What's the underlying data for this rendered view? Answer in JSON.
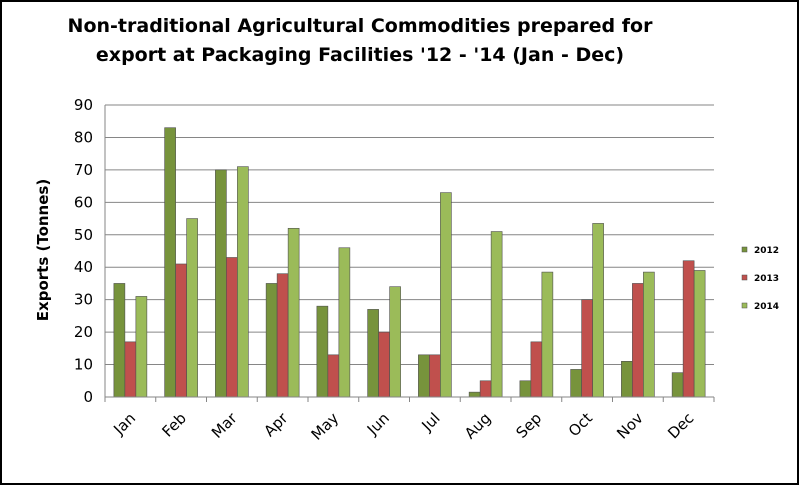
{
  "chart_data": {
    "type": "bar",
    "title_line1": "Non-traditional Agricultural Commodities prepared for",
    "title_line2": "export at Packaging Facilities '12 - '14 (Jan - Dec)",
    "ylabel": "Exports (Tonnes)",
    "xlabel": "",
    "ylim": [
      0,
      90
    ],
    "yticks": [
      0,
      10,
      20,
      30,
      40,
      50,
      60,
      70,
      80,
      90
    ],
    "grid": true,
    "legend_position": "right",
    "categories": [
      "Jan",
      "Feb",
      "Mar",
      "Apr",
      "May",
      "Jun",
      "Jul",
      "Aug",
      "Sep",
      "Oct",
      "Nov",
      "Dec"
    ],
    "series": [
      {
        "name": "2012",
        "color": "#77933c",
        "values": [
          35,
          83,
          70,
          35,
          28,
          27,
          13,
          1.5,
          5,
          8.5,
          11,
          7.5
        ]
      },
      {
        "name": "2013",
        "color": "#c0504d",
        "values": [
          17,
          41,
          43,
          38,
          13,
          20,
          13,
          5,
          17,
          30,
          35,
          42
        ]
      },
      {
        "name": "2014",
        "color": "#9bbb59",
        "values": [
          31,
          55,
          71,
          52,
          46,
          34,
          63,
          51,
          38.5,
          53.5,
          38.5,
          39
        ]
      }
    ]
  }
}
